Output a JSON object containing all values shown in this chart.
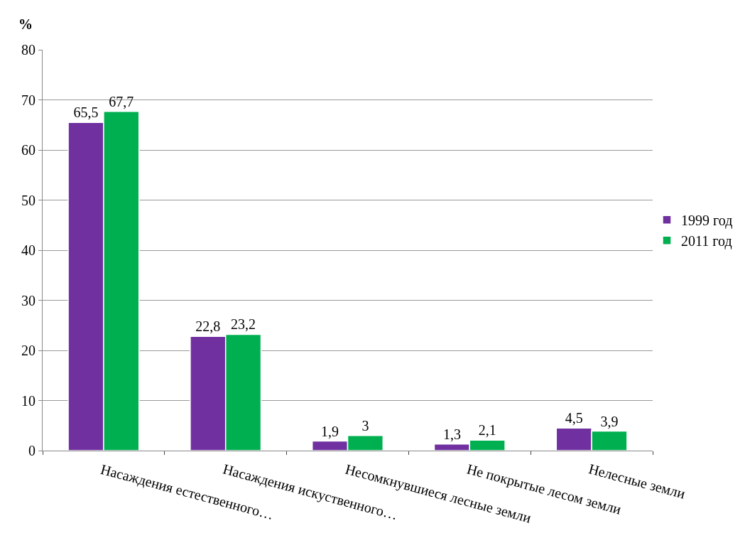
{
  "chart_data": {
    "type": "bar",
    "ylabel": "%",
    "categories": [
      "Насаждения естественного…",
      "Насаждения искуственного…",
      "Несомкнувшиеся лесные земли",
      "Не покрытые лесом земли",
      "Нелесные земли"
    ],
    "series": [
      {
        "name": "1999 год",
        "color": "#7030a0",
        "values": [
          65.5,
          22.8,
          1.9,
          1.3,
          4.5
        ],
        "value_labels": [
          "65,5",
          "22,8",
          "1,9",
          "1,3",
          "4,5"
        ]
      },
      {
        "name": "2011 год",
        "color": "#00b050",
        "values": [
          67.7,
          23.2,
          3,
          2.1,
          3.9
        ],
        "value_labels": [
          "67,7",
          "23,2",
          "3",
          "2,1",
          "3,9"
        ]
      }
    ],
    "ylim": [
      0,
      80
    ],
    "yticks": [
      0,
      10,
      20,
      30,
      40,
      50,
      60,
      70,
      80
    ],
    "grid": "y",
    "legend": "right"
  }
}
